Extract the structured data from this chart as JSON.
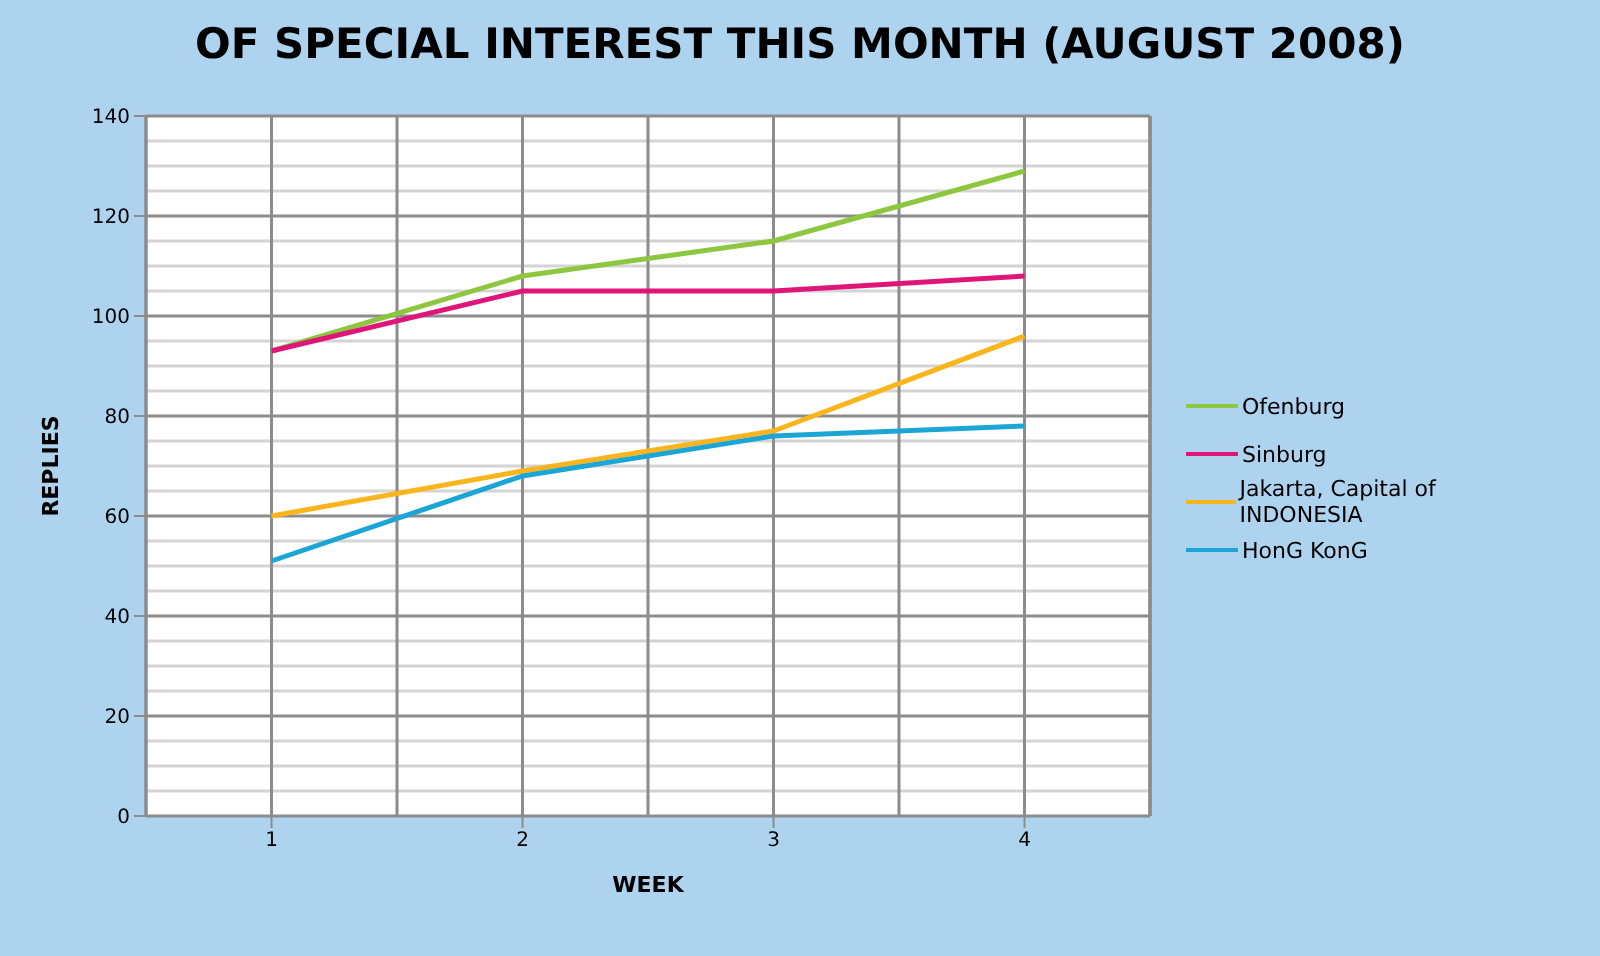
{
  "chart_data": {
    "type": "line",
    "title": "OF SPECIAL INTEREST THIS MONTH (AUGUST 2008)",
    "xlabel": "WEEK",
    "ylabel": "REPLIES",
    "x": [
      1,
      2,
      3,
      4
    ],
    "xlim": [
      0.5,
      4.5
    ],
    "xticks": [
      1,
      2,
      3,
      4
    ],
    "ylim": [
      0,
      140
    ],
    "yticks": [
      0,
      20,
      40,
      60,
      80,
      100,
      120,
      140
    ],
    "grid": true,
    "legend": "right",
    "marker": "none",
    "series": [
      {
        "name": "Ofenburg",
        "color": "#8dc63f",
        "values": [
          93,
          108,
          115,
          129
        ]
      },
      {
        "name": "Sinburg",
        "color": "#e0157a",
        "values": [
          93,
          105,
          105,
          108
        ]
      },
      {
        "name": "Jakarta, Capital of INDONESIA",
        "color": "#f9b51b",
        "values": [
          60,
          69,
          77,
          96
        ]
      },
      {
        "name": "HonG KonG",
        "color": "#1ba6d6",
        "values": [
          51,
          68,
          76,
          78
        ]
      }
    ]
  }
}
